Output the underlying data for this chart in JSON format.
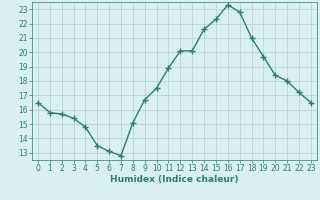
{
  "x": [
    0,
    1,
    2,
    3,
    4,
    5,
    6,
    7,
    8,
    9,
    10,
    11,
    12,
    13,
    14,
    15,
    16,
    17,
    18,
    19,
    20,
    21,
    22,
    23
  ],
  "y": [
    16.5,
    15.8,
    15.7,
    15.4,
    14.8,
    13.5,
    13.1,
    12.8,
    15.1,
    16.7,
    17.5,
    18.9,
    20.1,
    20.1,
    21.6,
    22.3,
    23.3,
    22.8,
    21.0,
    19.7,
    18.4,
    18.0,
    17.2,
    16.5
  ],
  "xlabel": "Humidex (Indice chaleur)",
  "xlim": [
    -0.5,
    23.5
  ],
  "ylim": [
    12.5,
    23.5
  ],
  "yticks": [
    13,
    14,
    15,
    16,
    17,
    18,
    19,
    20,
    21,
    22,
    23
  ],
  "xticks": [
    0,
    1,
    2,
    3,
    4,
    5,
    6,
    7,
    8,
    9,
    10,
    11,
    12,
    13,
    14,
    15,
    16,
    17,
    18,
    19,
    20,
    21,
    22,
    23
  ],
  "line_color": "#2e7d6e",
  "marker": "+",
  "marker_size": 4,
  "bg_color": "#d8f0f0",
  "grid_color": "#b8d0cc",
  "spine_color": "#2e7d6e",
  "tick_color": "#2e7d6e",
  "label_color": "#2e7d6e",
  "line_width": 1.0,
  "tick_fontsize": 5.5,
  "xlabel_fontsize": 6.5
}
